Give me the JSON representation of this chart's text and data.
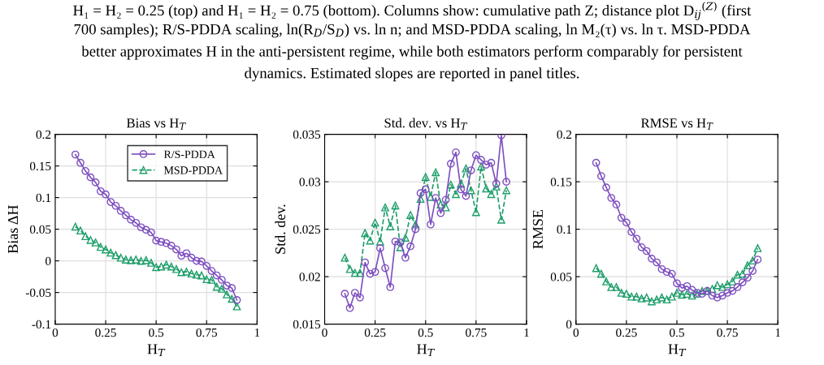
{
  "chart_data": [
    {
      "type": "line",
      "title": "Bias vs H$_{T}$",
      "xlabel": "H$_{T}$",
      "ylabel": "Bias ΔH",
      "annotations": [
        "H₁ = H₂ = 0.25 (top) and H₁ = H₂ = 0.75 (bottom). Columns show: cumulative path Z; distance plot D$_{ij}$$^{(Z)}$ (first",
        "700 samples); R/S-PDDA scaling, ln(R$_{D}$/S$_{D}$) vs. ln n; and MSD-PDDA scaling, ln M₂(τ) vs. ln τ. MSD-PDDA",
        "better approximates H in the anti-persistent regime, while both estimators perform comparably for persistent",
        "dynamics. Estimated slopes are reported in panel titles."
      ],
      "x": [
        0.1,
        0.125,
        0.15,
        0.175,
        0.2,
        0.225,
        0.25,
        0.275,
        0.3,
        0.325,
        0.35,
        0.375,
        0.4,
        0.425,
        0.45,
        0.475,
        0.5,
        0.525,
        0.55,
        0.575,
        0.6,
        0.625,
        0.65,
        0.675,
        0.7,
        0.725,
        0.75,
        0.775,
        0.8,
        0.825,
        0.85,
        0.875,
        0.9
      ],
      "series": [
        {
          "name": "R/S-PDDA",
          "color": "#7e4fc0",
          "marker": "circle",
          "line_style": "solid",
          "values": [
            0.168,
            0.155,
            0.142,
            0.132,
            0.124,
            0.11,
            0.105,
            0.093,
            0.087,
            0.079,
            0.072,
            0.065,
            0.06,
            0.053,
            0.049,
            0.045,
            0.032,
            0.03,
            0.028,
            0.024,
            0.018,
            0.008,
            0.012,
            0.005,
            0.0,
            -0.001,
            -0.008,
            -0.016,
            -0.023,
            -0.03,
            -0.039,
            -0.043,
            -0.062
          ]
        },
        {
          "name": "MSD-PDDA",
          "color": "#1e9e6a",
          "marker": "triangle",
          "line_style": "dashed",
          "values": [
            0.054,
            0.048,
            0.039,
            0.033,
            0.029,
            0.022,
            0.018,
            0.013,
            0.009,
            0.005,
            0.002,
            0.001,
            0.002,
            0.0,
            0.001,
            -0.003,
            -0.01,
            -0.009,
            -0.006,
            -0.009,
            -0.013,
            -0.018,
            -0.017,
            -0.02,
            -0.022,
            -0.023,
            -0.029,
            -0.03,
            -0.041,
            -0.044,
            -0.053,
            -0.06,
            -0.072
          ]
        }
      ],
      "xlim": [
        0,
        1
      ],
      "xticks": [
        0,
        0.25,
        0.5,
        0.75,
        1
      ],
      "ylim": [
        -0.1,
        0.2
      ],
      "yticks": [
        -0.1,
        -0.05,
        0,
        0.05,
        0.1,
        0.15,
        0.2
      ],
      "grid": true,
      "legend": "top right"
    },
    {
      "type": "line",
      "title": "Std. dev. vs H$_{T}$",
      "xlabel": "H$_{T}$",
      "ylabel": "Std. dev.",
      "x": [
        0.1,
        0.125,
        0.15,
        0.175,
        0.2,
        0.225,
        0.25,
        0.275,
        0.3,
        0.325,
        0.35,
        0.375,
        0.4,
        0.425,
        0.45,
        0.475,
        0.5,
        0.525,
        0.55,
        0.575,
        0.6,
        0.625,
        0.65,
        0.675,
        0.7,
        0.725,
        0.75,
        0.775,
        0.8,
        0.825,
        0.85,
        0.875,
        0.9
      ],
      "series": [
        {
          "color": "#7e4fc0",
          "marker": "circle",
          "line_style": "solid",
          "values": [
            0.0182,
            0.0167,
            0.0183,
            0.0178,
            0.0215,
            0.0203,
            0.0205,
            0.023,
            0.0209,
            0.0189,
            0.0237,
            0.0236,
            0.022,
            0.0232,
            0.025,
            0.0288,
            0.0292,
            0.0255,
            0.0283,
            0.0267,
            0.0281,
            0.0319,
            0.0331,
            0.0292,
            0.0285,
            0.0312,
            0.0328,
            0.0323,
            0.0318,
            0.032,
            0.0298,
            0.0349,
            0.03
          ]
        },
        {
          "color": "#1e9e6a",
          "marker": "triangle",
          "line_style": "dashed",
          "values": [
            0.022,
            0.0208,
            0.0204,
            0.0204,
            0.0246,
            0.0238,
            0.0257,
            0.0237,
            0.0273,
            0.0253,
            0.0275,
            0.0231,
            0.0241,
            0.0265,
            0.0255,
            0.0282,
            0.0305,
            0.0284,
            0.031,
            0.0276,
            0.0273,
            0.0297,
            0.0287,
            0.0298,
            0.0314,
            0.0291,
            0.0268,
            0.0316,
            0.0293,
            0.0287,
            0.0295,
            0.026,
            0.0291
          ]
        }
      ],
      "xlim": [
        0,
        1
      ],
      "xticks": [
        0,
        0.25,
        0.5,
        0.75,
        1
      ],
      "ylim": [
        0.015,
        0.035
      ],
      "yticks": [
        0.015,
        0.02,
        0.025,
        0.03,
        0.035
      ],
      "grid": true
    },
    {
      "type": "line",
      "title": "RMSE vs H$_{T}$",
      "xlabel": "H$_{T}$",
      "ylabel": "RMSE",
      "x": [
        0.1,
        0.125,
        0.15,
        0.175,
        0.2,
        0.225,
        0.25,
        0.275,
        0.3,
        0.325,
        0.35,
        0.375,
        0.4,
        0.425,
        0.45,
        0.475,
        0.5,
        0.525,
        0.55,
        0.575,
        0.6,
        0.625,
        0.65,
        0.675,
        0.7,
        0.725,
        0.75,
        0.775,
        0.8,
        0.825,
        0.85,
        0.875,
        0.9
      ],
      "series": [
        {
          "color": "#7e4fc0",
          "marker": "circle",
          "line_style": "solid",
          "values": [
            0.17,
            0.156,
            0.144,
            0.133,
            0.126,
            0.112,
            0.107,
            0.097,
            0.09,
            0.081,
            0.077,
            0.069,
            0.065,
            0.058,
            0.055,
            0.053,
            0.043,
            0.038,
            0.04,
            0.036,
            0.033,
            0.032,
            0.035,
            0.03,
            0.028,
            0.03,
            0.033,
            0.035,
            0.039,
            0.044,
            0.049,
            0.056,
            0.068
          ]
        },
        {
          "color": "#1e9e6a",
          "marker": "triangle",
          "line_style": "dashed",
          "values": [
            0.059,
            0.053,
            0.045,
            0.039,
            0.039,
            0.033,
            0.032,
            0.029,
            0.029,
            0.027,
            0.028,
            0.024,
            0.026,
            0.028,
            0.026,
            0.029,
            0.033,
            0.031,
            0.032,
            0.03,
            0.032,
            0.035,
            0.035,
            0.037,
            0.041,
            0.039,
            0.042,
            0.045,
            0.052,
            0.053,
            0.062,
            0.067,
            0.08
          ]
        }
      ],
      "xlim": [
        0,
        1
      ],
      "xticks": [
        0,
        0.25,
        0.5,
        0.75,
        1
      ],
      "ylim": [
        0,
        0.2
      ],
      "yticks": [
        0,
        0.05,
        0.1,
        0.15,
        0.2
      ],
      "grid": true
    }
  ]
}
